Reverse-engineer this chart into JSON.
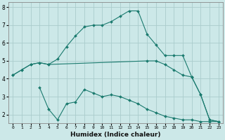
{
  "xlabel": "Humidex (Indice chaleur)",
  "ylabel": "",
  "background_color": "#cce8e8",
  "grid_color": "#aacccc",
  "line_color": "#1a7a6e",
  "xlim": [
    -0.5,
    23.5
  ],
  "ylim": [
    1.5,
    8.3
  ],
  "yticks": [
    2,
    3,
    4,
    5,
    6,
    7,
    8
  ],
  "xticks": [
    0,
    1,
    2,
    3,
    4,
    5,
    6,
    7,
    8,
    9,
    10,
    11,
    12,
    13,
    14,
    15,
    16,
    17,
    18,
    19,
    20,
    21,
    22,
    23
  ],
  "series": [
    {
      "x": [
        0,
        1,
        2,
        3,
        4,
        15,
        16,
        17,
        18,
        19,
        20,
        21,
        22,
        23
      ],
      "y": [
        4.2,
        4.5,
        4.8,
        4.9,
        4.8,
        5.0,
        5.0,
        4.8,
        4.5,
        4.2,
        4.1,
        3.1,
        1.7,
        1.6
      ]
    },
    {
      "x": [
        0,
        1,
        2,
        3,
        4,
        5,
        6,
        7,
        8,
        9,
        10,
        11,
        12,
        13,
        14,
        15,
        16,
        17,
        18,
        19,
        20,
        21,
        22,
        23
      ],
      "y": [
        4.2,
        4.5,
        4.8,
        4.9,
        4.8,
        5.1,
        5.8,
        6.4,
        6.9,
        7.0,
        7.0,
        7.2,
        7.5,
        7.8,
        7.8,
        6.5,
        5.9,
        5.3,
        5.3,
        5.3,
        4.1,
        3.1,
        1.7,
        1.6
      ]
    },
    {
      "x": [
        3,
        4,
        5,
        6,
        7,
        8,
        9,
        10,
        11,
        12,
        13,
        14,
        15,
        16,
        17,
        18,
        19,
        20,
        21,
        22,
        23
      ],
      "y": [
        3.5,
        2.3,
        1.7,
        2.6,
        2.7,
        3.4,
        3.2,
        3.0,
        3.1,
        3.0,
        2.8,
        2.6,
        2.3,
        2.1,
        1.9,
        1.8,
        1.7,
        1.7,
        1.6,
        1.6,
        1.6
      ]
    }
  ]
}
